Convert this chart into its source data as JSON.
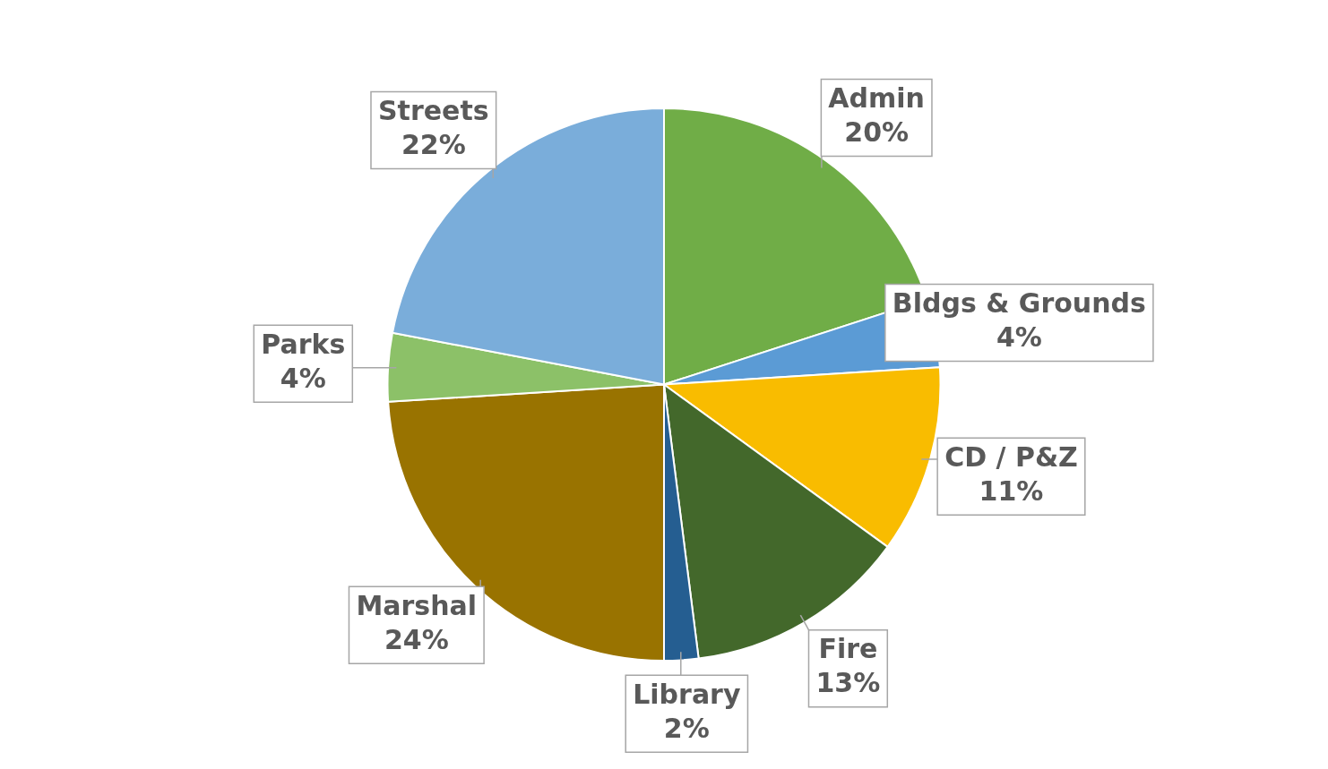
{
  "chart_data": {
    "type": "pie",
    "categories": [
      "Admin",
      "Bldgs & Grounds",
      "CD / P&Z",
      "Fire",
      "Library",
      "Marshal",
      "Parks",
      "Streets"
    ],
    "values": [
      20,
      4,
      11,
      13,
      2,
      24,
      4,
      22
    ],
    "value_labels": [
      "20%",
      "4%",
      "11%",
      "13%",
      "2%",
      "24%",
      "4%",
      "22%"
    ],
    "colors": [
      "#70ad47",
      "#5b9bd5",
      "#f9bc00",
      "#43682b",
      "#255e91",
      "#997300",
      "#8cc168",
      "#7aadda"
    ],
    "legend": false
  }
}
